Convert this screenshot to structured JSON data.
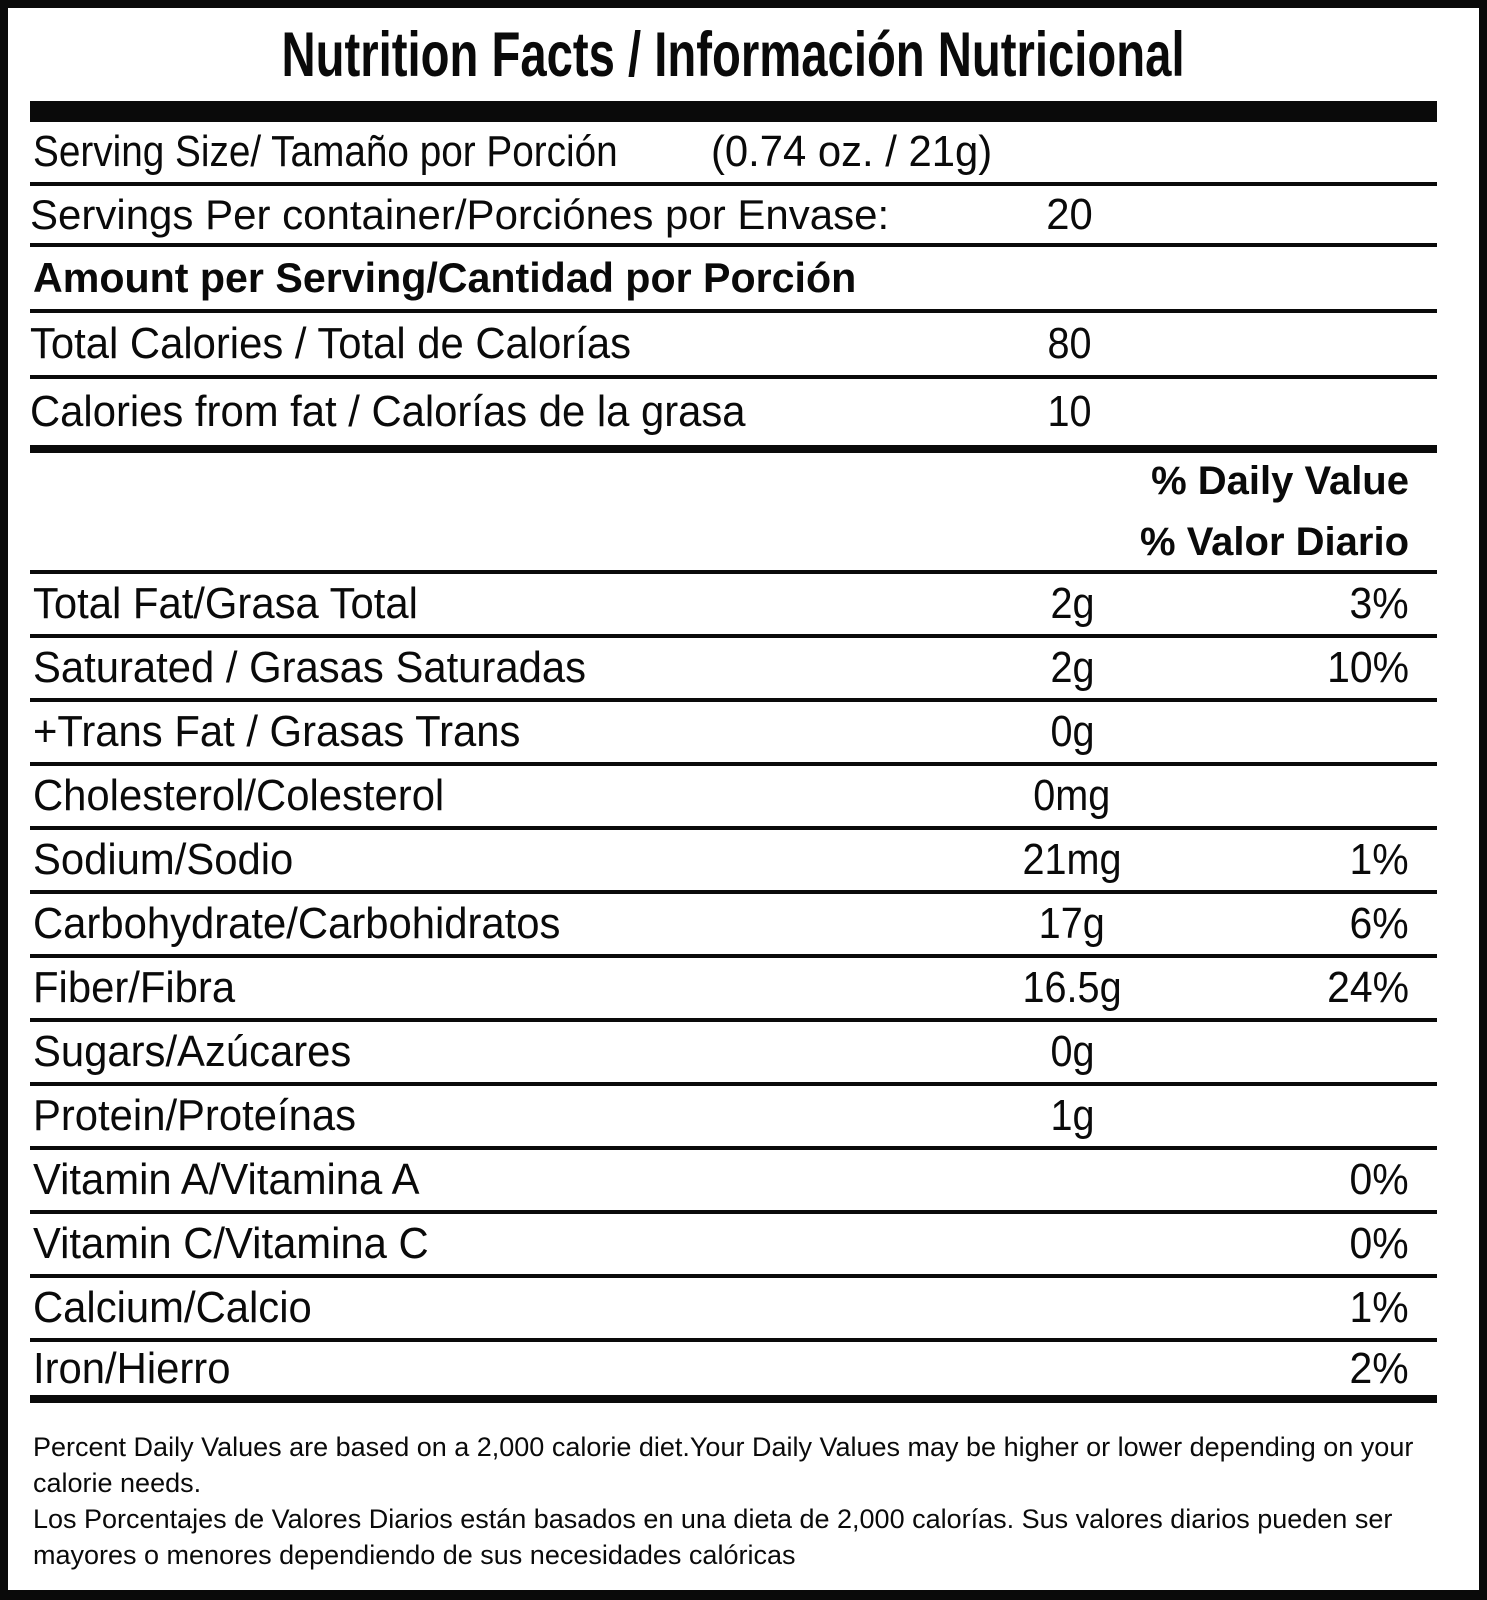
{
  "label": {
    "title": "Nutrition Facts / Información Nutricional",
    "serving_size": {
      "label": "Serving Size/ Tamaño por Porción",
      "value": "(0.74 oz. / 21g)"
    },
    "servings_per_container": {
      "label": "Servings Per container/Porciónes por Envase:",
      "value": "20"
    },
    "amount_per_serving_heading": "Amount per Serving/Cantidad por Porción",
    "calories_rows": [
      {
        "label": "Total Calories / Total de Calorías",
        "amount": "80"
      },
      {
        "label": "Calories from fat / Calorías de la grasa",
        "amount": "10"
      }
    ],
    "daily_value_header": {
      "en": "% Daily Value",
      "es": "% Valor Diario"
    },
    "nutrient_rows": [
      {
        "label": "Total Fat/Grasa Total",
        "amount": "2g",
        "dv": "3%"
      },
      {
        "label": "Saturated / Grasas Saturadas",
        "amount": "2g",
        "dv": "10%"
      },
      {
        "label": "+Trans Fat / Grasas Trans",
        "amount": "0g",
        "dv": ""
      },
      {
        "label": "Cholesterol/Colesterol",
        "amount": "0mg",
        "dv": ""
      },
      {
        "label": "Sodium/Sodio",
        "amount": "21mg",
        "dv": "1%"
      },
      {
        "label": "Carbohydrate/Carbohidratos",
        "amount": "17g",
        "dv": "6%"
      },
      {
        "label": "Fiber/Fibra",
        "amount": "16.5g",
        "dv": "24%"
      },
      {
        "label": "Sugars/Azúcares",
        "amount": "0g",
        "dv": ""
      },
      {
        "label": "Protein/Proteínas",
        "amount": "1g",
        "dv": ""
      },
      {
        "label": "Vitamin A/Vitamina A",
        "amount": "",
        "dv": "0%"
      },
      {
        "label": "Vitamin C/Vitamina C",
        "amount": "",
        "dv": "0%"
      },
      {
        "label": "Calcium/Calcio",
        "amount": "",
        "dv": "1%"
      },
      {
        "label": "Iron/Hierro",
        "amount": "",
        "dv": "2%"
      }
    ],
    "footnote": {
      "en": "Percent Daily Values are based on a 2,000 calorie diet.Your Daily Values may be higher or lower depending on your calorie needs.",
      "es": "Los Porcentajes de Valores Diarios están basados en una dieta de 2,000 calorías. Sus valores diarios pueden ser mayores o menores dependiendo de sus necesidades calóricas"
    },
    "colors": {
      "ink": "#0a0a0a",
      "background": "#ffffff"
    }
  }
}
